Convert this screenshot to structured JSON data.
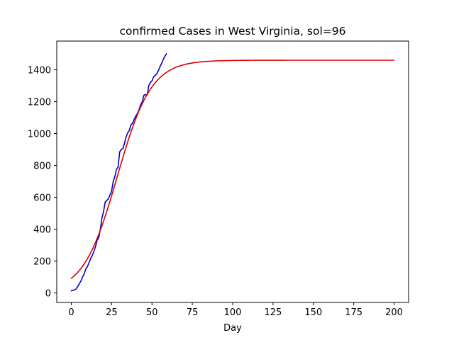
{
  "chart_data": {
    "type": "line",
    "title": "confirmed Cases in West Virginia, sol=96",
    "xlabel": "Day",
    "ylabel": "",
    "xlim": [
      -9,
      209
    ],
    "ylim": [
      -60,
      1580
    ],
    "xticks": [
      0,
      25,
      50,
      75,
      100,
      125,
      150,
      175,
      200
    ],
    "yticks": [
      0,
      200,
      400,
      600,
      800,
      1000,
      1200,
      1400
    ],
    "grid": false,
    "series": [
      {
        "color": "#0000cc",
        "points": [
          [
            0,
            13
          ],
          [
            1,
            17
          ],
          [
            2,
            18
          ],
          [
            3,
            25
          ],
          [
            4,
            40
          ],
          [
            5,
            58
          ],
          [
            6,
            75
          ],
          [
            7,
            100
          ],
          [
            8,
            120
          ],
          [
            9,
            150
          ],
          [
            10,
            165
          ],
          [
            11,
            190
          ],
          [
            12,
            215
          ],
          [
            13,
            235
          ],
          [
            14,
            260
          ],
          [
            15,
            290
          ],
          [
            16,
            330
          ],
          [
            17,
            345
          ],
          [
            18,
            400
          ],
          [
            19,
            470
          ],
          [
            20,
            510
          ],
          [
            21,
            570
          ],
          [
            22,
            580
          ],
          [
            23,
            590
          ],
          [
            24,
            615
          ],
          [
            25,
            640
          ],
          [
            26,
            700
          ],
          [
            27,
            730
          ],
          [
            28,
            775
          ],
          [
            29,
            790
          ],
          [
            30,
            885
          ],
          [
            31,
            900
          ],
          [
            32,
            905
          ],
          [
            33,
            940
          ],
          [
            34,
            980
          ],
          [
            35,
            1005
          ],
          [
            36,
            1020
          ],
          [
            37,
            1055
          ],
          [
            38,
            1065
          ],
          [
            39,
            1090
          ],
          [
            40,
            1110
          ],
          [
            41,
            1125
          ],
          [
            42,
            1150
          ],
          [
            43,
            1180
          ],
          [
            44,
            1200
          ],
          [
            45,
            1240
          ],
          [
            46,
            1245
          ],
          [
            47,
            1240
          ],
          [
            48,
            1300
          ],
          [
            49,
            1320
          ],
          [
            50,
            1330
          ],
          [
            51,
            1355
          ],
          [
            52,
            1365
          ],
          [
            53,
            1375
          ],
          [
            54,
            1395
          ],
          [
            55,
            1420
          ],
          [
            56,
            1440
          ],
          [
            57,
            1465
          ],
          [
            58,
            1485
          ],
          [
            59,
            1500
          ]
        ]
      },
      {
        "color": "#dd0000",
        "curve": "logistic",
        "K": 1460,
        "r": 0.095,
        "t0": 28.5,
        "x_range": [
          0,
          200
        ]
      }
    ]
  }
}
